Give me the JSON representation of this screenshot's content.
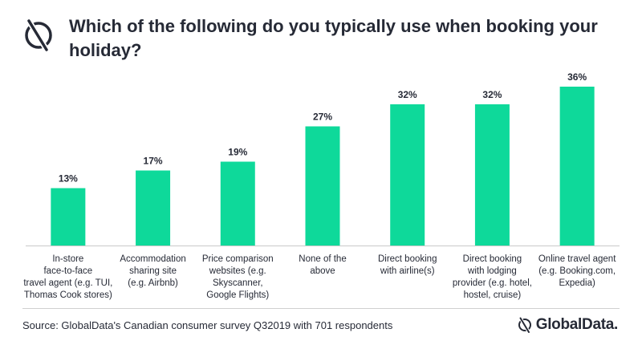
{
  "header": {
    "title": "Which of the following do you typically use when booking your holiday?",
    "logo_icon": "globaldata-mark-icon"
  },
  "chart_data": {
    "type": "bar",
    "categories": [
      "In-store face-to-face travel agent (e.g. TUI, Thomas Cook stores)",
      "Accommodation sharing site (e.g. Airbnb)",
      "Price comparison websites (e.g. Skyscanner, Google Flights)",
      "None of the above",
      "Direct booking with airline(s)",
      "Direct booking with lodging provider (e.g. hotel, hostel, cruise)",
      "Online travel agent (e.g. Booking.com, Expedia)"
    ],
    "category_lines": [
      [
        "In-store",
        "face-to-face",
        "travel agent (e.g. TUI,",
        "Thomas Cook stores)"
      ],
      [
        "Accommodation",
        "sharing site",
        "(e.g. Airbnb)"
      ],
      [
        "Price comparison",
        "websites (e.g.",
        "Skyscanner,",
        "Google Flights)"
      ],
      [
        "None of the",
        "above"
      ],
      [
        "Direct booking",
        "with airline(s)"
      ],
      [
        "Direct booking",
        "with lodging",
        "provider (e.g. hotel,",
        "hostel, cruise)"
      ],
      [
        "Online travel agent",
        "(e.g. Booking.com,",
        "Expedia)"
      ]
    ],
    "values": [
      13,
      17,
      19,
      27,
      32,
      32,
      36
    ],
    "value_labels": [
      "13%",
      "17%",
      "19%",
      "27%",
      "32%",
      "32%",
      "36%"
    ],
    "unit": "%",
    "ylim": [
      0,
      36
    ],
    "grid": false,
    "bar_color": "#0ed99a"
  },
  "footer": {
    "source": "Source: GlobalData's Canadian consumer survey Q32019 with 701 respondents",
    "brand_name": "GlobalData.",
    "brand_icon": "globaldata-mark-icon"
  }
}
